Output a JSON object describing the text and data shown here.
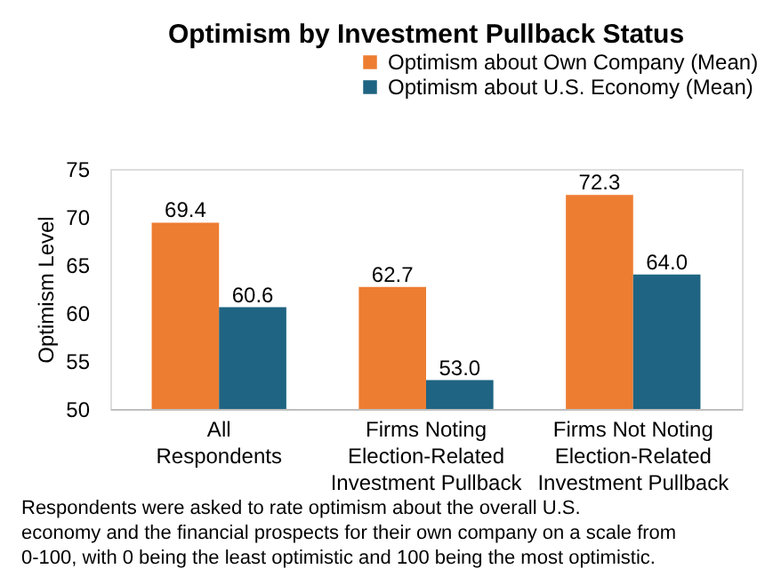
{
  "chart_data": {
    "type": "bar",
    "title": "Optimism by Investment Pullback Status",
    "ylabel": "Optimism Level",
    "categories": [
      "All\nRespondents",
      "Firms Noting\nElection-Related\nInvestment Pullback",
      "Firms Not Noting\nElection-Related\nInvestment Pullback"
    ],
    "series": [
      {
        "name": "Optimism about Own Company (Mean)",
        "color": "#ed7d31",
        "values": [
          69.4,
          62.7,
          72.3
        ],
        "value_labels": [
          "69.4",
          "62.7",
          "72.3"
        ]
      },
      {
        "name": "Optimism about U.S. Economy  (Mean)",
        "color": "#1f6482",
        "values": [
          60.6,
          53.0,
          64.0
        ],
        "value_labels": [
          "60.6",
          "53.0",
          "64.0"
        ]
      }
    ],
    "ylim": [
      50,
      75
    ],
    "yticks": [
      50,
      55,
      60,
      65,
      70,
      75
    ],
    "grid": false,
    "legend": "top right",
    "annotations": [
      "Respondents were asked to rate optimism about the overall U.S.\neconomy and the financial prospects for their own company on a scale from\n0-100, with 0 being the least optimistic and 100 being the most optimistic."
    ]
  }
}
